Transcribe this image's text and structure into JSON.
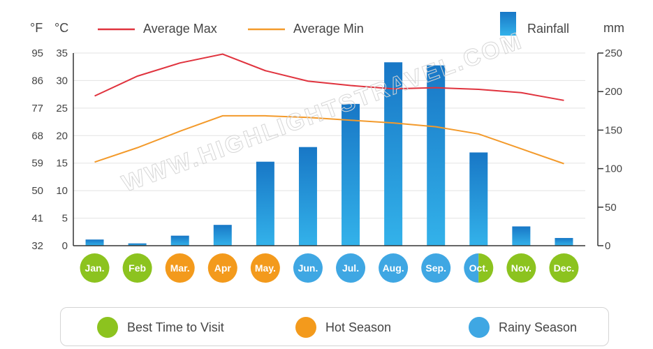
{
  "chart_data": {
    "type": "bar+line",
    "categories": [
      "Jan.",
      "Feb",
      "Mar.",
      "Apr",
      "May.",
      "Jun.",
      "Jul.",
      "Aug.",
      "Sep.",
      "Oct.",
      "Nov.",
      "Dec."
    ],
    "series": [
      {
        "name": "Average Max",
        "type": "line",
        "axis": "celsius",
        "color": "#e0333e",
        "values": [
          27.2,
          30.8,
          33.2,
          34.8,
          31.8,
          29.9,
          29.1,
          28.5,
          28.7,
          28.4,
          27.8,
          26.4
        ]
      },
      {
        "name": "Average Min",
        "type": "line",
        "axis": "celsius",
        "color": "#f39a2b",
        "values": [
          15.2,
          17.8,
          20.8,
          23.6,
          23.6,
          23.3,
          22.8,
          22.3,
          21.6,
          20.3,
          17.6,
          14.9
        ]
      },
      {
        "name": "Rainfall",
        "type": "bar",
        "axis": "mm",
        "color": "#2aa3e0",
        "values": [
          8,
          3,
          13,
          27,
          109,
          128,
          184,
          238,
          234,
          121,
          25,
          10
        ]
      }
    ],
    "left_axis_f": {
      "unit": "°F",
      "ticks": [
        "95",
        "86",
        "77",
        "68",
        "59",
        "50",
        "41",
        "32"
      ]
    },
    "left_axis_c": {
      "unit": "°C",
      "ticks": [
        "35",
        "30",
        "25",
        "20",
        "15",
        "10",
        "5",
        "0"
      ],
      "ylim": [
        0,
        35
      ]
    },
    "right_axis": {
      "unit": "mm",
      "ticks": [
        "250",
        "200",
        "150",
        "100",
        "50",
        "0"
      ],
      "ylim": [
        0,
        250
      ]
    },
    "legend": {
      "max_label": "Average Max",
      "min_label": "Average Min",
      "rain_label": "Rainfall"
    },
    "month_seasons": [
      "best",
      "best",
      "hot",
      "hot",
      "hot",
      "rainy",
      "rainy",
      "rainy",
      "rainy",
      "rainy+best",
      "best",
      "best"
    ],
    "watermark": "WWW.HIGHLIGHTSTRAVEL.COM",
    "grid": true
  },
  "season_legend": {
    "items": [
      {
        "label": "Best Time to Visit",
        "color": "#8cc31f"
      },
      {
        "label": "Hot Season",
        "color": "#f39a1c"
      },
      {
        "label": "Rainy Season",
        "color": "#3fa7e3"
      }
    ]
  }
}
